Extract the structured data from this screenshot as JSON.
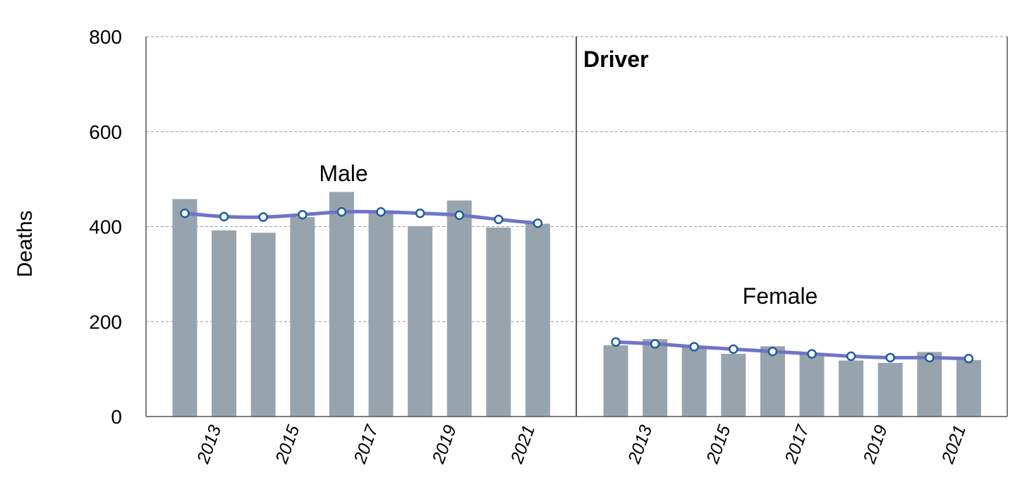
{
  "chart_data": {
    "type": "bar",
    "title": "Driver",
    "ylabel": "Deaths",
    "xlabel": "",
    "ylim": [
      0,
      800
    ],
    "yticks": [
      0,
      200,
      400,
      600,
      800
    ],
    "grid": true,
    "panels": [
      {
        "label": "Male",
        "x": [
          2012,
          2013,
          2014,
          2015,
          2016,
          2017,
          2018,
          2019,
          2020,
          2021
        ],
        "xtick_labels": [
          "2013",
          "2015",
          "2017",
          "2019",
          "2021"
        ],
        "values": [
          458,
          392,
          387,
          420,
          473,
          430,
          401,
          455,
          398,
          406
        ],
        "trend": [
          428,
          421,
          420,
          425,
          431,
          431,
          428,
          424,
          415,
          407
        ]
      },
      {
        "label": "Female",
        "x": [
          2012,
          2013,
          2014,
          2015,
          2016,
          2017,
          2018,
          2019,
          2020,
          2021
        ],
        "xtick_labels": [
          "2013",
          "2015",
          "2017",
          "2019",
          "2021"
        ],
        "values": [
          150,
          163,
          147,
          132,
          148,
          131,
          118,
          113,
          136,
          119
        ],
        "trend": [
          157,
          153,
          147,
          142,
          137,
          132,
          127,
          124,
          124,
          122
        ]
      }
    ],
    "colors": {
      "bar": "#98a4ad",
      "trend_line": "#6f74c8",
      "marker_edge": "#1f5f96",
      "marker_fill": "#ffffff",
      "grid": "#9a9a9a",
      "frame": "#555555"
    }
  }
}
